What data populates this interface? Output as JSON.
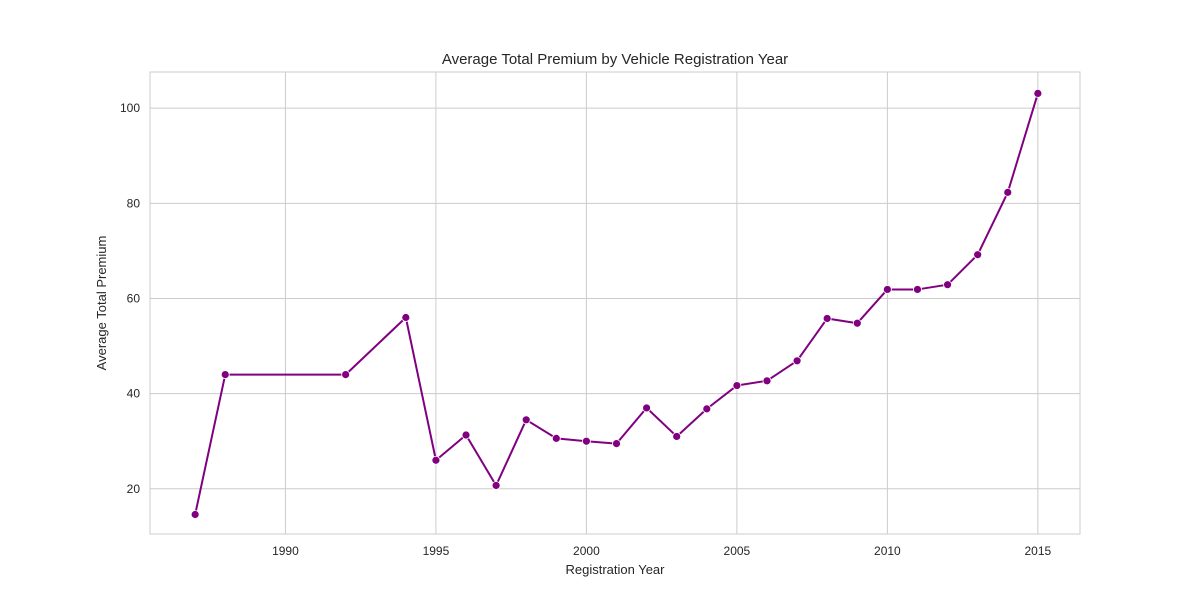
{
  "chart_data": {
    "type": "line",
    "title": "Average Total Premium by Vehicle Registration Year",
    "xlabel": "Registration Year",
    "ylabel": "Average Total Premium",
    "xlim": [
      1985.5,
      2016.4
    ],
    "ylim": [
      10.5,
      107.6
    ],
    "xticks": [
      1990,
      1995,
      2000,
      2005,
      2010,
      2015
    ],
    "yticks": [
      20,
      40,
      60,
      80,
      100
    ],
    "grid": true,
    "legend": false,
    "colors": {
      "line": "#800080",
      "grid": "#cccccc",
      "text": "#262626"
    },
    "series": [
      {
        "x": [
          1987,
          1988,
          1992,
          1994,
          1995,
          1996,
          1997,
          1998,
          1999,
          2000,
          2001,
          2002,
          2003,
          2004,
          2005,
          2006,
          2007,
          2008,
          2009,
          2010,
          2011,
          2012,
          2013,
          2014,
          2015
        ],
        "values": [
          14.6,
          44.0,
          44.0,
          56.0,
          26.0,
          31.3,
          20.7,
          34.5,
          30.6,
          30.0,
          29.5,
          37.0,
          31.0,
          36.8,
          41.7,
          42.7,
          46.9,
          55.8,
          54.8,
          61.9,
          61.9,
          62.9,
          69.2,
          82.3,
          103.1
        ]
      }
    ]
  }
}
